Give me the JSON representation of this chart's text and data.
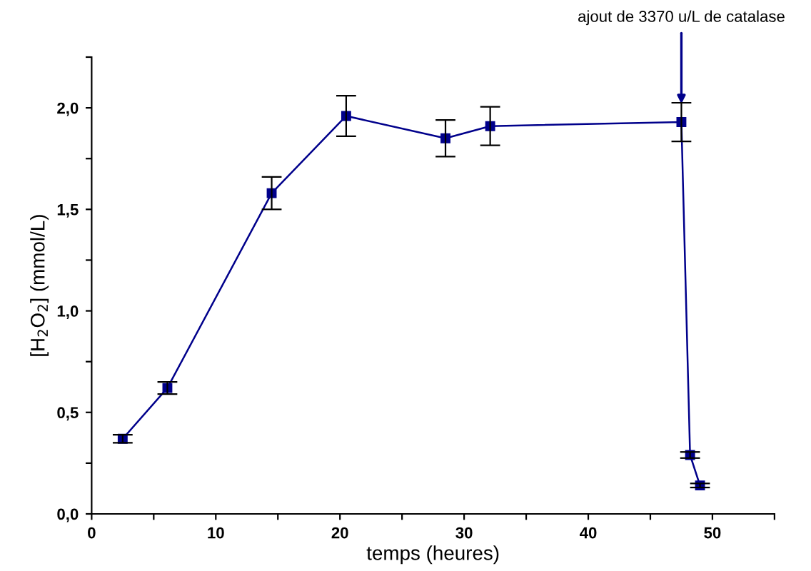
{
  "chart_data": {
    "type": "line",
    "xlabel": "temps (heures)",
    "ylabel": "[H$_{2}$O$_{2}$] (mmol/L)",
    "xlim": [
      0,
      55
    ],
    "ylim": [
      0,
      2.25
    ],
    "xticks": [
      0,
      {
        "value": 5,
        "label": null
      },
      10,
      {
        "value": 15,
        "label": null
      },
      20,
      {
        "value": 25,
        "label": null
      },
      30,
      {
        "value": 35,
        "label": null
      },
      40,
      {
        "value": 45,
        "label": null
      },
      50,
      {
        "value": 55,
        "label": null
      }
    ],
    "yticks": [
      {
        "value": 0,
        "label": "0,0"
      },
      {
        "value": 0.25,
        "label": null
      },
      {
        "value": 0.5,
        "label": "0,5"
      },
      {
        "value": 0.75,
        "label": null
      },
      {
        "value": 1.0,
        "label": "1,0"
      },
      {
        "value": 1.25,
        "label": null
      },
      {
        "value": 1.5,
        "label": "1,5"
      },
      {
        "value": 1.75,
        "label": null
      },
      {
        "value": 2.0,
        "label": "2,0"
      },
      {
        "value": 2.25,
        "label": null
      }
    ],
    "marker": "square",
    "line_style": "solid",
    "grid": false,
    "legend": false,
    "series": [
      {
        "color": "#00008b",
        "x": [
          2.5,
          6.1,
          14.5,
          20.5,
          28.5,
          32.1,
          47.5,
          48.2,
          49.0
        ],
        "values": [
          0.37,
          0.62,
          1.58,
          1.96,
          1.85,
          1.91,
          1.93,
          0.29,
          0.14
        ],
        "errors": [
          0.02,
          0.03,
          0.08,
          0.1,
          0.09,
          0.095,
          0.095,
          0.015,
          0.01
        ]
      }
    ],
    "annotations": [
      {
        "text": "ajout de 3370 u/L de catalase",
        "x": 47.5,
        "y": 2.0
      }
    ]
  }
}
